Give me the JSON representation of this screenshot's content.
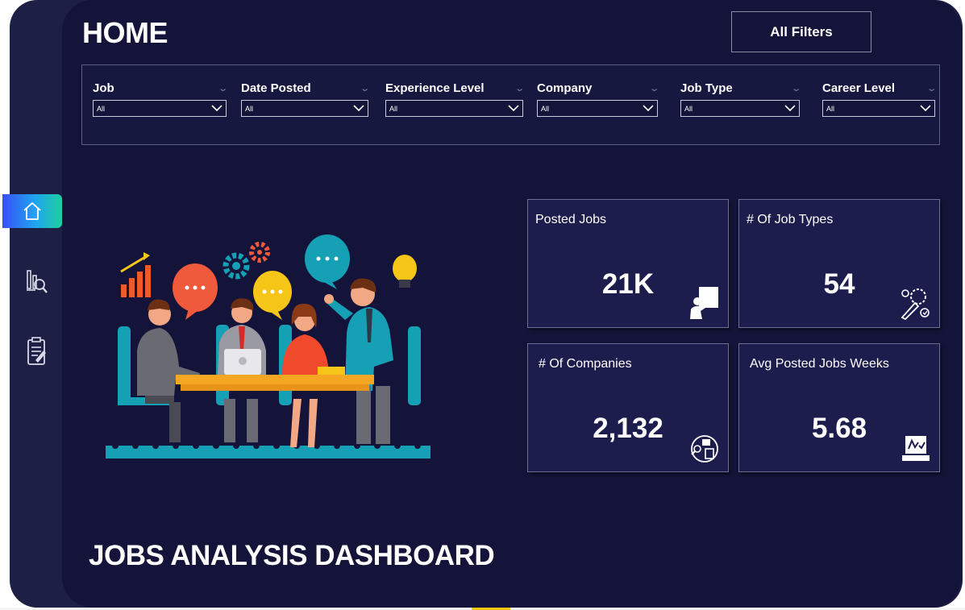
{
  "header": {
    "page_title": "HOME",
    "filters_button_label": "All Filters"
  },
  "filters": [
    {
      "label": "Job",
      "value": "All"
    },
    {
      "label": "Date Posted",
      "value": "All"
    },
    {
      "label": "Experience Level",
      "value": "All"
    },
    {
      "label": "Company",
      "value": "All"
    },
    {
      "label": "Job Type",
      "value": "All"
    },
    {
      "label": "Career Level",
      "value": "All"
    }
  ],
  "nav": {
    "items": [
      {
        "icon": "home-icon",
        "active": true
      },
      {
        "icon": "analysis-icon",
        "active": false
      },
      {
        "icon": "report-icon",
        "active": false
      }
    ]
  },
  "kpis": [
    {
      "title": "Posted Jobs",
      "value": "21K",
      "icon": "presenter-icon"
    },
    {
      "title": "# Of Job Types",
      "value": "54",
      "icon": "job-types-icon"
    },
    {
      "title": "# Of Companies",
      "value": "2,132",
      "icon": "company-search-icon"
    },
    {
      "title": "Avg Posted Jobs Weeks",
      "value": "5.68",
      "icon": "laptop-chart-icon"
    }
  ],
  "footer": {
    "dashboard_title": "JOBS ANALYSIS DASHBOARD"
  },
  "colors": {
    "background": "#14143a",
    "card": "#1c1c4d",
    "nav_gradient_start": "#3a4ff7",
    "nav_gradient_end": "#1ecf9e"
  }
}
